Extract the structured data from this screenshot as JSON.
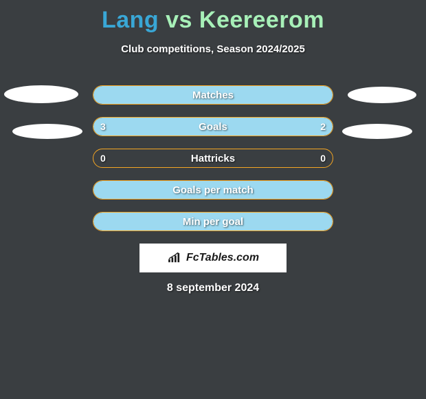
{
  "title": {
    "player1": "Lang",
    "vs": "vs",
    "player2": "Keereerom",
    "player1_color": "#39a7d6",
    "vs_color": "#a7f0b8",
    "player2_color": "#a7f0b8"
  },
  "subtitle": "Club competitions, Season 2024/2025",
  "background_color": "#3a3e41",
  "ellipse_color": "#ffffff",
  "bars": {
    "container_width": 350,
    "border_color": "#f5a623",
    "fill_color": "#9cd9f0",
    "label_color": "#ffffff",
    "rows": [
      {
        "label": "Matches",
        "left_value": "",
        "right_value": "",
        "left_pct": 100,
        "right_pct": 0,
        "full_fill": true
      },
      {
        "label": "Goals",
        "left_value": "3",
        "right_value": "2",
        "left_pct": 60,
        "right_pct": 40,
        "full_fill": false
      },
      {
        "label": "Hattricks",
        "left_value": "0",
        "right_value": "0",
        "left_pct": 0,
        "right_pct": 0,
        "full_fill": false
      },
      {
        "label": "Goals per match",
        "left_value": "",
        "right_value": "",
        "left_pct": 100,
        "right_pct": 0,
        "full_fill": true
      },
      {
        "label": "Min per goal",
        "left_value": "",
        "right_value": "",
        "left_pct": 100,
        "right_pct": 0,
        "full_fill": true
      }
    ]
  },
  "logo": {
    "text": "FcTables.com",
    "icon_name": "barchart-icon"
  },
  "date": "8 september 2024"
}
